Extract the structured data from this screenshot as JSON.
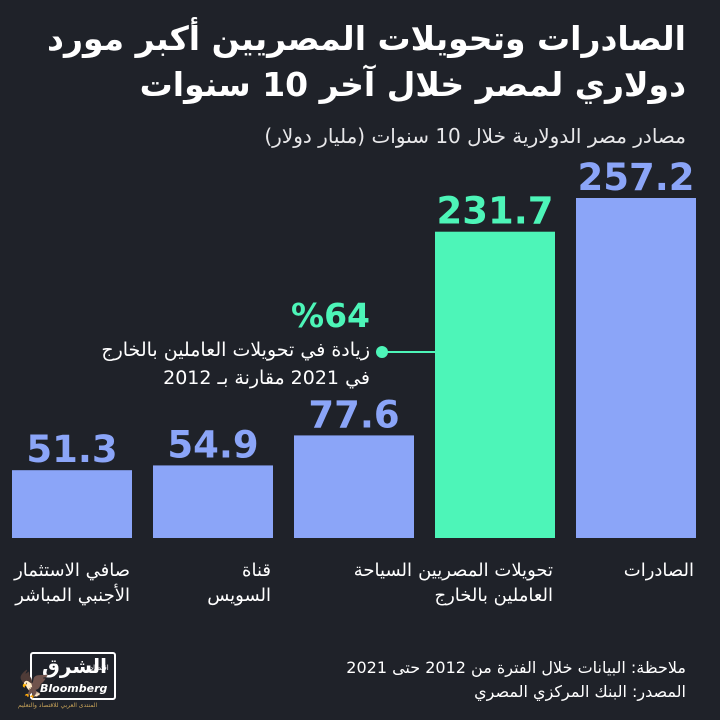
{
  "title_line1": "الصادرات وتحويلات المصريين أكبر مورد",
  "title_line2": "دولاري لمصر خلال آخر 10 سنوات",
  "subtitle": "مصادر مصر الدولارية خلال 10 سنوات (مليار دولار)",
  "callout": {
    "value": "%64",
    "line1": "زيادة في تحويلات العاملين بالخارج",
    "line2": "في 2021 مقارنة بـ 2012"
  },
  "footer": {
    "note": "ملاحظة: البيانات خلال الفترة من 2012 حتى 2021",
    "source": "المصدر: البنك المركزي المصري"
  },
  "logo": {
    "arabic": "الشرق",
    "sub": "اقتصاد",
    "english": "Bloomberg",
    "tagline": "المنتدى العربي للاقتصاد والتعليم",
    "eagle_icon": "eagle-icon"
  },
  "colors": {
    "background": "#1f2229",
    "bar_default": "#8ba5f8",
    "bar_highlight": "#4df5b8"
  },
  "chart_data": {
    "type": "bar",
    "title": "الصادرات وتحويلات المصريين أكبر مورد دولاري لمصر خلال آخر 10 سنوات",
    "subtitle": "مصادر مصر الدولارية خلال 10 سنوات (مليار دولار)",
    "categories": [
      "الصادرات",
      "تحويلات المصريين العاملين بالخارج",
      "السياحة",
      "قناة السويس",
      "صافي الاستثمار الأجنبي المباشر"
    ],
    "category_lines": [
      [
        "الصادرات"
      ],
      [
        "تحويلات المصريين",
        "العاملين بالخارج"
      ],
      [
        "السياحة"
      ],
      [
        "قناة",
        "السويس"
      ],
      [
        "صافي الاستثمار",
        "الأجنبي المباشر"
      ]
    ],
    "values": [
      257.2,
      231.7,
      77.6,
      54.9,
      51.3
    ],
    "value_labels": [
      "257.2",
      "231.7",
      "77.6",
      "54.9",
      "51.3"
    ],
    "highlight_index": 1,
    "ylim": [
      0,
      257.2
    ],
    "grid": false,
    "legend": "none"
  }
}
